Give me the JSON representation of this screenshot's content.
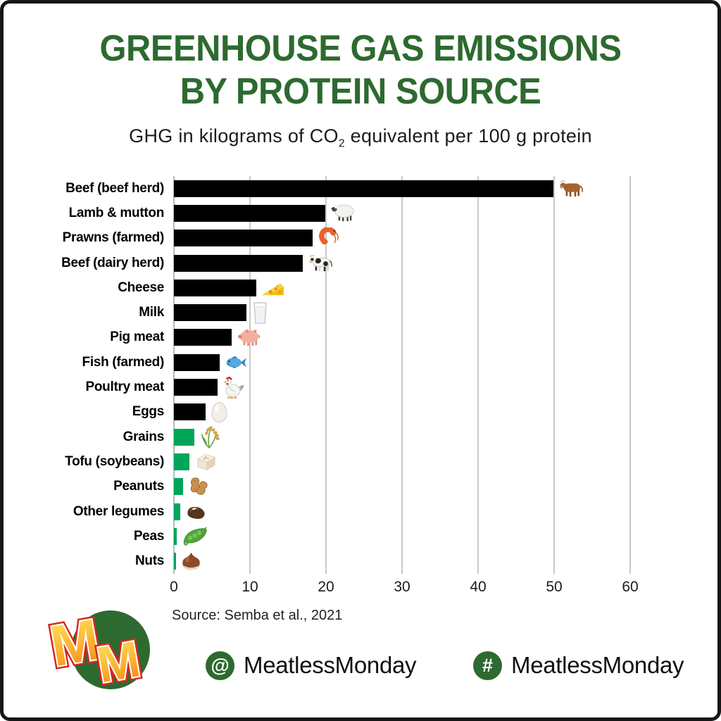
{
  "title": {
    "line1": "GREENHOUSE GAS EMISSIONS",
    "line2": "BY PROTEIN SOURCE"
  },
  "subtitle": {
    "prefix": "GHG in kilograms of CO",
    "sub": "2",
    "suffix": " equivalent per 100 g protein"
  },
  "chart_data": {
    "type": "bar",
    "orientation": "horizontal",
    "title": "Greenhouse gas emissions by protein source",
    "xlabel": "kg CO2 equivalent per 100 g protein",
    "xlim": [
      0,
      61
    ],
    "xticks": [
      0,
      10,
      20,
      30,
      40,
      50,
      60
    ],
    "grid": true,
    "categories": [
      "Beef (beef herd)",
      "Lamb & mutton",
      "Prawns (farmed)",
      "Beef (dairy herd)",
      "Cheese",
      "Milk",
      "Pig meat",
      "Fish (farmed)",
      "Poultry meat",
      "Eggs",
      "Grains",
      "Tofu (soybeans)",
      "Peanuts",
      "Other legumes",
      "Peas",
      "Nuts"
    ],
    "values": [
      49.9,
      19.9,
      18.2,
      16.9,
      10.8,
      9.5,
      7.6,
      6.0,
      5.7,
      4.2,
      2.7,
      2.0,
      1.2,
      0.8,
      0.4,
      0.3
    ],
    "bar_colors": [
      "#000000",
      "#000000",
      "#000000",
      "#000000",
      "#000000",
      "#000000",
      "#000000",
      "#000000",
      "#000000",
      "#000000",
      "#00A65A",
      "#00A65A",
      "#00A65A",
      "#00A65A",
      "#00A65A",
      "#00A65A"
    ],
    "icons": [
      "cow-icon",
      "sheep-icon",
      "shrimp-icon",
      "dairy-cow-icon",
      "cheese-icon",
      "milk-glass-icon",
      "pig-icon",
      "fish-icon",
      "rooster-icon",
      "egg-icon",
      "rice-plant-icon",
      "tofu-icon",
      "peanuts-icon",
      "bean-icon",
      "pea-pod-icon",
      "chestnut-icon"
    ],
    "color_meaning": {
      "animal_products": "#000000",
      "plant_products": "#00A65A"
    }
  },
  "source": {
    "text": "Source: Semba et al., 2021"
  },
  "footer": {
    "at_symbol": "@",
    "at_text": "MeatlessMonday",
    "hash_symbol": "#",
    "hash_text": "MeatlessMonday"
  },
  "logo": {
    "letter1": "M",
    "letter2": "M"
  },
  "theme": {
    "title_green": "#2D6A2F",
    "plant_green": "#00A65A",
    "bar_black": "#000000",
    "badge_green": "#2D6A30",
    "grid_grey": "#C9C9C9",
    "frame_black": "#161616"
  }
}
